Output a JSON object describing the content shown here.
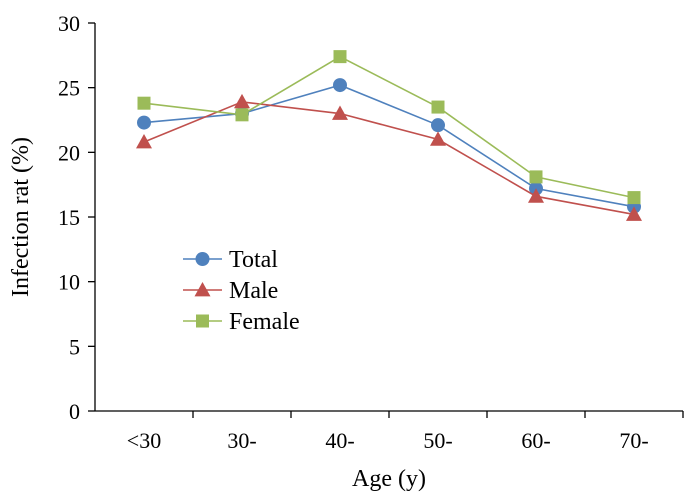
{
  "chart_data": {
    "type": "line",
    "title": "",
    "xlabel": "Age (y)",
    "ylabel": "Infection rat (%)",
    "categories": [
      "<30",
      "30-",
      "40-",
      "50-",
      "60-",
      "70-"
    ],
    "ylim": [
      0,
      30
    ],
    "yticks": [
      0,
      5,
      10,
      15,
      20,
      25,
      30
    ],
    "grid": false,
    "legend_position": "left-middle",
    "series": [
      {
        "name": "Total",
        "marker": "circle",
        "color": "#4f81bd",
        "values": [
          22.3,
          23.0,
          25.2,
          22.1,
          17.2,
          15.8
        ]
      },
      {
        "name": "Male",
        "marker": "triangle",
        "color": "#c0504d",
        "values": [
          20.8,
          23.9,
          23.0,
          21.0,
          16.6,
          15.2
        ]
      },
      {
        "name": "Female",
        "marker": "square",
        "color": "#9bbb59",
        "values": [
          23.8,
          22.9,
          27.4,
          23.5,
          18.1,
          16.5
        ]
      }
    ]
  }
}
